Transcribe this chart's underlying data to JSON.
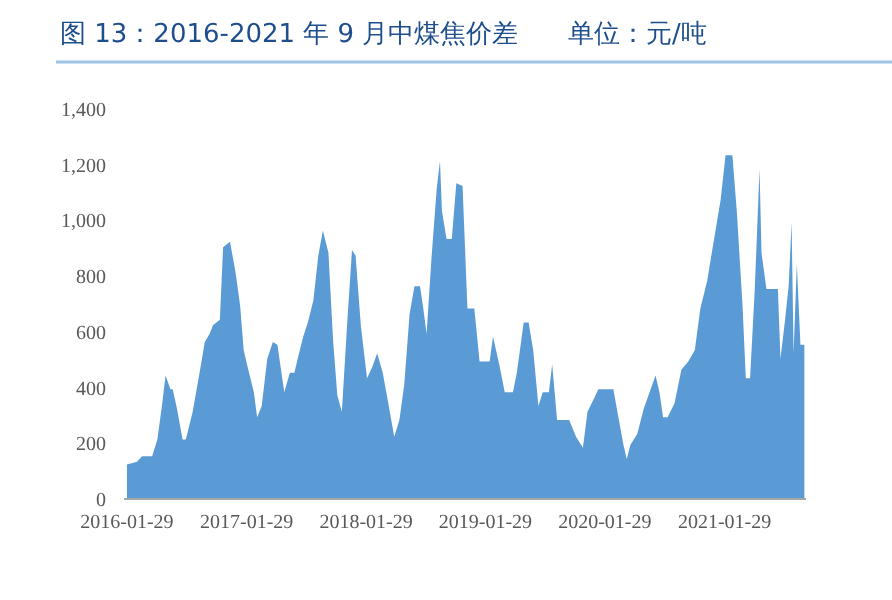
{
  "chart_data": {
    "type": "area",
    "title": "图 13：2016-2021 年 9 月中煤焦价差      单位：元/吨",
    "x": [
      "2016-01-29",
      "2016-02-29",
      "2016-03-15",
      "2016-04-15",
      "2016-05-01",
      "2016-05-16",
      "2016-05-26",
      "2016-06-10",
      "2016-06-17",
      "2016-06-30",
      "2016-07-17",
      "2016-07-27",
      "2016-08-17",
      "2016-09-07",
      "2016-09-23",
      "2016-10-08",
      "2016-10-18",
      "2016-11-08",
      "2016-11-18",
      "2016-12-09",
      "2016-12-26",
      "2017-01-09",
      "2017-01-20",
      "2017-02-03",
      "2017-02-20",
      "2017-03-02",
      "2017-03-16",
      "2017-04-02",
      "2017-04-19",
      "2017-05-03",
      "2017-05-24",
      "2017-06-10",
      "2017-06-24",
      "2017-07-04",
      "2017-07-21",
      "2017-08-04",
      "2017-08-21",
      "2017-09-05",
      "2017-09-19",
      "2017-10-06",
      "2017-10-20",
      "2017-11-02",
      "2017-11-16",
      "2017-12-03",
      "2017-12-17",
      "2017-12-28",
      "2018-01-13",
      "2018-02-01",
      "2018-02-17",
      "2018-03-04",
      "2018-03-21",
      "2018-04-10",
      "2018-04-25",
      "2018-05-11",
      "2018-05-26",
      "2018-06-11",
      "2018-06-26",
      "2018-07-13",
      "2018-07-23",
      "2018-08-02",
      "2018-08-17",
      "2018-09-02",
      "2018-09-12",
      "2018-09-18",
      "2018-10-02",
      "2018-10-18",
      "2018-11-01",
      "2018-11-20",
      "2018-12-05",
      "2018-12-26",
      "2019-01-11",
      "2019-02-11",
      "2019-02-21",
      "2019-03-12",
      "2019-03-29",
      "2019-04-23",
      "2019-05-05",
      "2019-05-26",
      "2019-06-10",
      "2019-06-24",
      "2019-07-10",
      "2019-07-23",
      "2019-08-11",
      "2019-08-21",
      "2019-09-05",
      "2019-10-12",
      "2019-11-02",
      "2019-11-23",
      "2019-12-07",
      "2019-12-28",
      "2020-01-09",
      "2020-02-24",
      "2020-03-12",
      "2020-03-26",
      "2020-04-05",
      "2020-04-16",
      "2020-05-07",
      "2020-05-27",
      "2020-06-17",
      "2020-07-02",
      "2020-07-14",
      "2020-07-25",
      "2020-08-08",
      "2020-08-29",
      "2020-09-19",
      "2020-10-10",
      "2020-10-30",
      "2020-11-16",
      "2020-12-07",
      "2020-12-28",
      "2021-01-17",
      "2021-02-01",
      "2021-02-22",
      "2021-03-08",
      "2021-03-25",
      "2021-04-04",
      "2021-04-17",
      "2021-05-01",
      "2021-05-16",
      "2021-05-22",
      "2021-06-06",
      "2021-07-11",
      "2021-07-19",
      "2021-08-01",
      "2021-08-13",
      "2021-08-22",
      "2021-08-28",
      "2021-09-07",
      "2021-09-18",
      "2021-09-30"
    ],
    "values": [
      120,
      130,
      150,
      150,
      210,
      340,
      440,
      390,
      390,
      320,
      210,
      210,
      310,
      450,
      560,
      590,
      620,
      640,
      900,
      920,
      810,
      690,
      530,
      460,
      380,
      290,
      330,
      500,
      560,
      550,
      380,
      450,
      450,
      500,
      580,
      630,
      710,
      870,
      960,
      880,
      570,
      370,
      310,
      640,
      890,
      870,
      620,
      430,
      470,
      520,
      450,
      320,
      220,
      280,
      410,
      660,
      760,
      760,
      680,
      590,
      860,
      1110,
      1210,
      1030,
      930,
      930,
      1130,
      1120,
      680,
      680,
      490,
      490,
      580,
      480,
      380,
      380,
      450,
      630,
      630,
      530,
      330,
      380,
      380,
      480,
      280,
      280,
      220,
      180,
      310,
      360,
      390,
      390,
      280,
      190,
      140,
      190,
      230,
      320,
      390,
      440,
      380,
      290,
      290,
      340,
      460,
      490,
      530,
      680,
      780,
      930,
      1070,
      1230,
      1230,
      1020,
      690,
      430,
      430,
      740,
      1180,
      880,
      750,
      750,
      500,
      630,
      760,
      990,
      520,
      840,
      550,
      550
    ],
    "color": "#5b9bd5",
    "xlim": [
      "2016-01-20",
      "2021-10-05"
    ],
    "xticks": [
      "2016-01-29",
      "2017-01-29",
      "2018-01-29",
      "2019-01-29",
      "2020-01-29",
      "2021-01-29"
    ],
    "ylim": [
      0,
      1400
    ],
    "yticks": [
      0,
      {
        "value": 200,
        "label": "200"
      },
      {
        "value": 400,
        "label": "400"
      },
      {
        "value": 600,
        "label": "600"
      },
      {
        "value": 800,
        "label": "800"
      },
      {
        "value": 1000,
        "label": "1,000"
      },
      {
        "value": 1200,
        "label": "1,200"
      },
      {
        "value": 1400,
        "label": "1,400"
      }
    ],
    "grid": false
  }
}
